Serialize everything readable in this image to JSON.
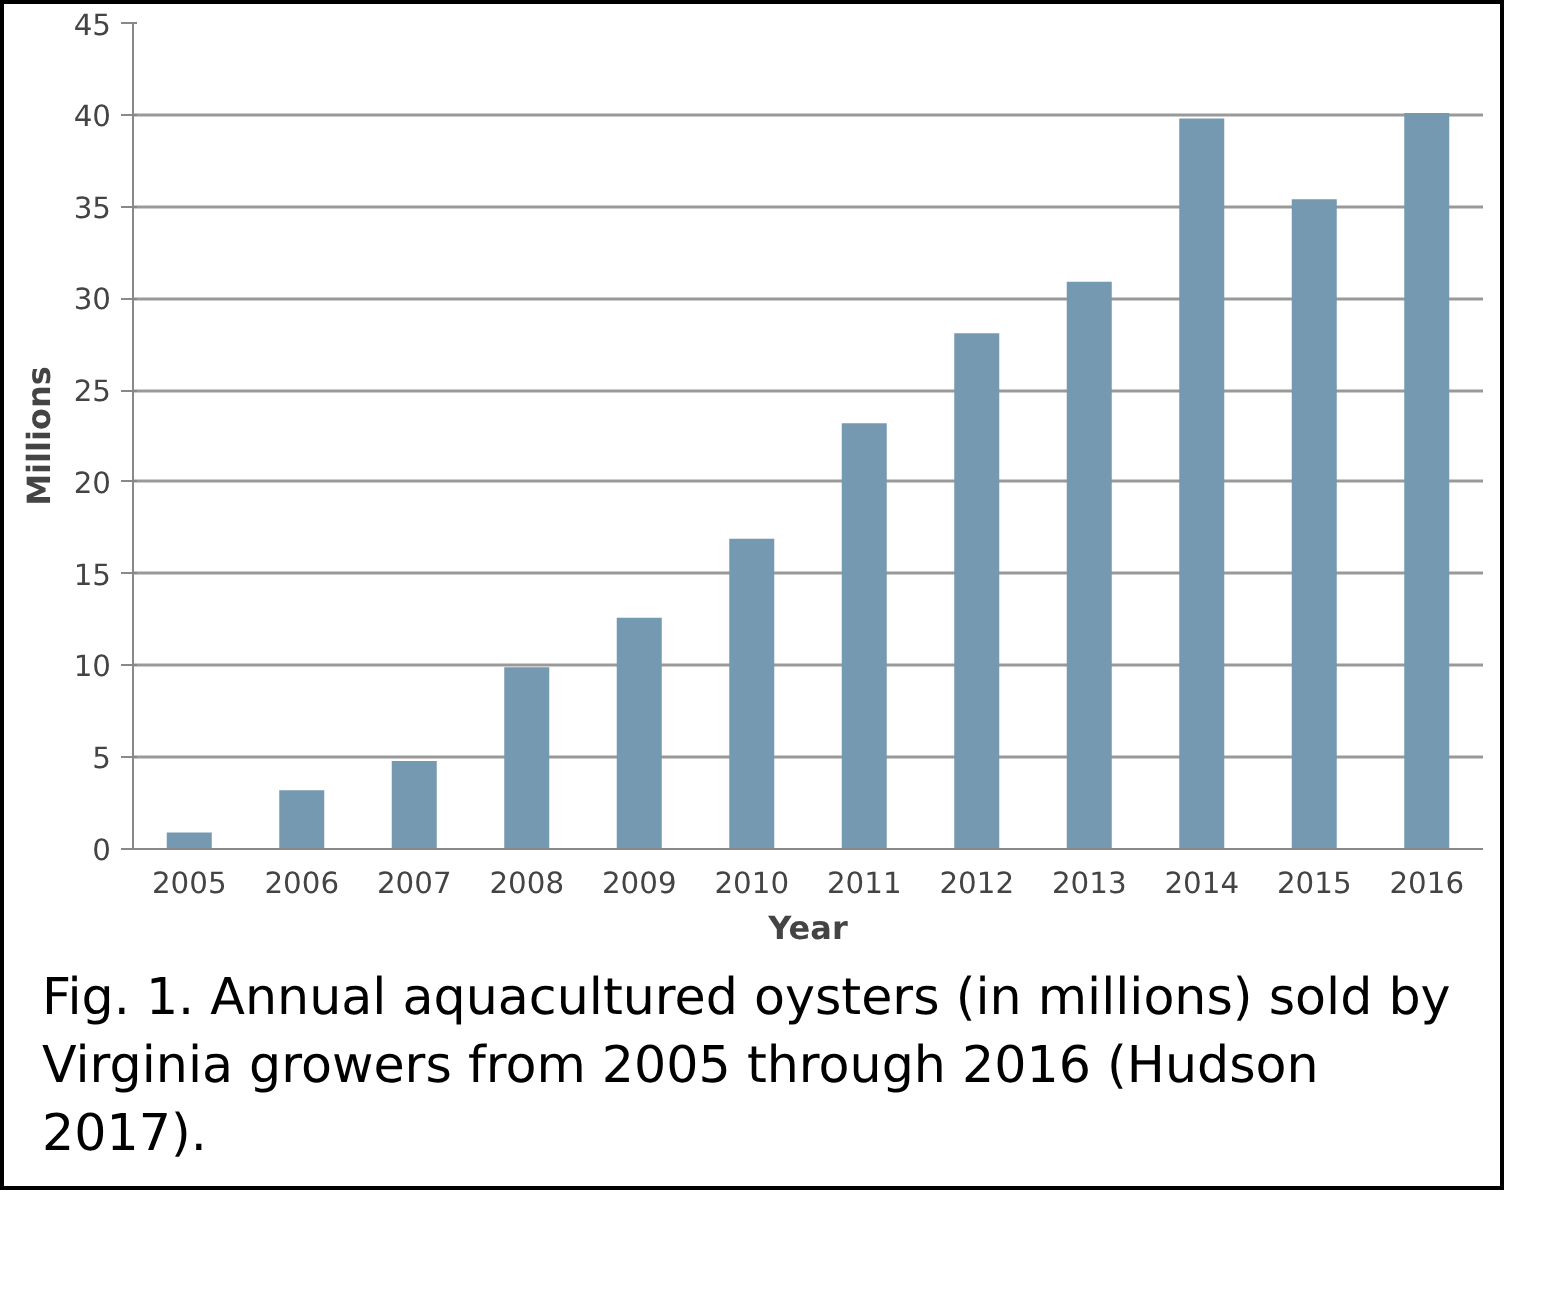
{
  "chart_data": {
    "type": "bar",
    "xlabel": "Year",
    "ylabel": "Millions",
    "categories": [
      "2005",
      "2006",
      "2007",
      "2008",
      "2009",
      "2010",
      "2011",
      "2012",
      "2013",
      "2014",
      "2015",
      "2016"
    ],
    "values": [
      0.9,
      3.2,
      4.8,
      9.9,
      12.6,
      16.9,
      23.2,
      28.1,
      30.9,
      39.8,
      35.4,
      40.1
    ],
    "color": "#7499b0",
    "ylim": [
      0,
      45
    ],
    "yticks": [
      0,
      5,
      10,
      15,
      20,
      25,
      30,
      35,
      40,
      45
    ],
    "grid": "y",
    "annotations": [
      "Fig. 1. Annual aquacultured oysters (in millions) sold by Virginia growers from 2005 through 2016 (Hudson 2017)."
    ]
  }
}
